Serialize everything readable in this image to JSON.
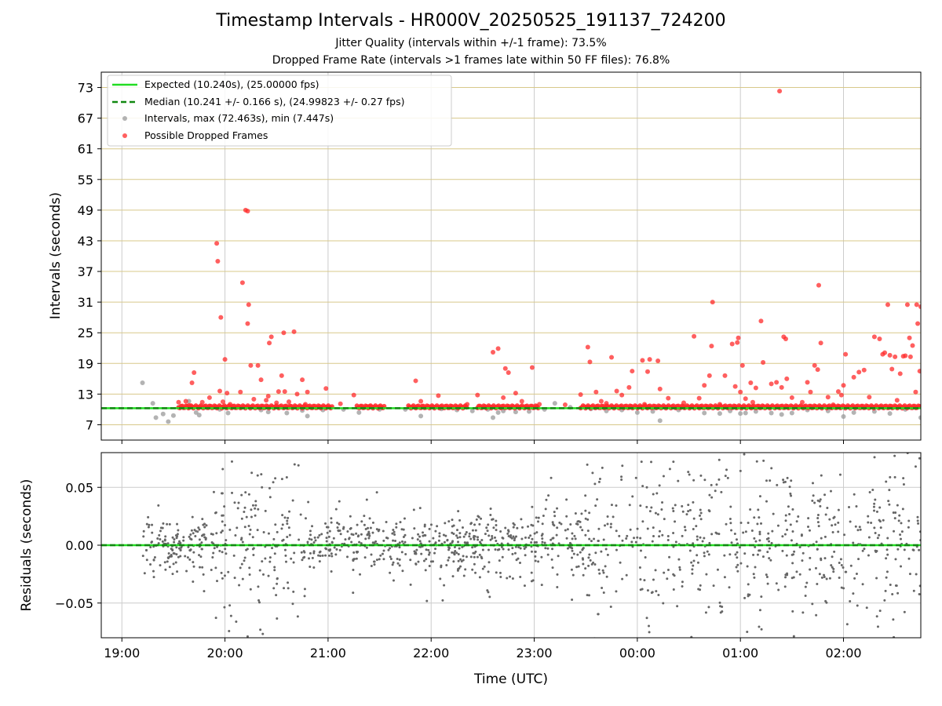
{
  "figure": {
    "title": "Timestamp Intervals - HR000V_20250525_191137_724200",
    "subtitle_lines": [
      "Jitter Quality (intervals within +/-1 frame): 73.5%",
      "Dropped Frame Rate (intervals >1 frames late within 50 FF files): 76.8%"
    ]
  },
  "colors": {
    "expected_line": "#22dd22",
    "median_line": "#118811",
    "intervals_points": "#999999",
    "dropped_points": "#ff2a2a",
    "residual_points": "#666666",
    "top_grid": "#d8c88a",
    "vertical_grid": "#cccccc"
  },
  "chart_data": [
    {
      "type": "scatter",
      "panel": "top",
      "ylabel": "Intervals (seconds)",
      "xlabel": "",
      "x_unit": "hours (UTC, continuous from 19:00)",
      "xlim": [
        18.8,
        26.75
      ],
      "ylim": [
        4.0,
        76.0
      ],
      "y_ticks": [
        7,
        13,
        19,
        25,
        31,
        37,
        43,
        49,
        55,
        61,
        67,
        73
      ],
      "x_ticks": [
        19,
        20,
        21,
        22,
        23,
        24,
        25,
        26
      ],
      "x_tick_labels": [
        "19:00",
        "20:00",
        "21:00",
        "22:00",
        "23:00",
        "00:00",
        "01:00",
        "02:00"
      ],
      "grid": {
        "horizontal": true,
        "vertical": true
      },
      "legend_position": "top-left",
      "legend": [
        "Expected (10.240s), (25.00000 fps)",
        "Median (10.241 +/- 0.166 s), (24.99823 +/- 0.27 fps)",
        "Intervals, max (72.463s), min (7.447s)",
        "Possible Dropped Frames"
      ],
      "expected_value": 10.24,
      "median_value": 10.241,
      "series": {
        "intervals": [
          [
            19.2,
            15.2
          ],
          [
            19.3,
            11.2
          ],
          [
            19.33,
            8.4
          ],
          [
            19.4,
            9.1
          ],
          [
            19.45,
            7.6
          ],
          [
            19.5,
            8.8
          ],
          [
            19.55,
            10.4
          ],
          [
            19.65,
            11.6
          ],
          [
            19.72,
            9.4
          ],
          [
            19.75,
            8.9
          ],
          [
            19.85,
            10.6
          ],
          [
            19.95,
            10.0
          ],
          [
            20.03,
            9.3
          ],
          [
            20.2,
            10.5
          ],
          [
            20.35,
            9.9
          ],
          [
            20.42,
            9.5
          ],
          [
            20.6,
            9.3
          ],
          [
            20.75,
            9.8
          ],
          [
            20.8,
            8.7
          ],
          [
            20.95,
            9.9
          ],
          [
            21.15,
            10.0
          ],
          [
            21.3,
            9.4
          ],
          [
            21.5,
            10.0
          ],
          [
            21.75,
            10.0
          ],
          [
            21.9,
            8.7
          ],
          [
            22.1,
            10.1
          ],
          [
            22.25,
            9.9
          ],
          [
            22.4,
            9.7
          ],
          [
            22.55,
            10.0
          ],
          [
            22.6,
            8.4
          ],
          [
            22.65,
            9.4
          ],
          [
            22.7,
            9.7
          ],
          [
            22.82,
            9.5
          ],
          [
            22.95,
            9.6
          ],
          [
            23.1,
            10.0
          ],
          [
            23.2,
            11.2
          ],
          [
            23.35,
            10.4
          ],
          [
            23.55,
            10.1
          ],
          [
            23.7,
            9.7
          ],
          [
            23.85,
            9.9
          ],
          [
            24.0,
            9.4
          ],
          [
            24.15,
            9.6
          ],
          [
            24.22,
            7.8
          ],
          [
            24.4,
            9.9
          ],
          [
            24.65,
            9.3
          ],
          [
            24.8,
            9.2
          ],
          [
            24.9,
            9.7
          ],
          [
            25.0,
            9.2
          ],
          [
            25.05,
            9.3
          ],
          [
            25.15,
            9.6
          ],
          [
            25.3,
            9.3
          ],
          [
            25.4,
            9.0
          ],
          [
            25.5,
            9.3
          ],
          [
            25.65,
            9.9
          ],
          [
            25.85,
            9.7
          ],
          [
            26.0,
            8.6
          ],
          [
            26.1,
            9.4
          ],
          [
            26.3,
            9.6
          ],
          [
            26.45,
            9.2
          ],
          [
            26.6,
            10.0
          ],
          [
            26.75,
            8.4
          ]
        ],
        "dropped": [
          [
            19.55,
            11.4
          ],
          [
            19.62,
            11.6
          ],
          [
            19.65,
            10.8
          ],
          [
            19.68,
            15.2
          ],
          [
            19.7,
            17.2
          ],
          [
            19.78,
            11.4
          ],
          [
            19.85,
            12.3
          ],
          [
            19.92,
            42.5
          ],
          [
            19.93,
            39.0
          ],
          [
            19.95,
            13.6
          ],
          [
            19.96,
            28.0
          ],
          [
            19.98,
            11.5
          ],
          [
            20.0,
            19.8
          ],
          [
            20.02,
            13.2
          ],
          [
            20.05,
            11.0
          ],
          [
            20.15,
            13.4
          ],
          [
            20.17,
            34.8
          ],
          [
            20.2,
            49.0
          ],
          [
            20.22,
            48.8
          ],
          [
            20.22,
            26.8
          ],
          [
            20.23,
            30.5
          ],
          [
            20.25,
            18.6
          ],
          [
            20.28,
            12.0
          ],
          [
            20.32,
            18.6
          ],
          [
            20.35,
            15.8
          ],
          [
            20.4,
            11.8
          ],
          [
            20.42,
            12.6
          ],
          [
            20.43,
            23.0
          ],
          [
            20.45,
            24.2
          ],
          [
            20.5,
            11.3
          ],
          [
            20.52,
            13.5
          ],
          [
            20.55,
            16.6
          ],
          [
            20.57,
            25.0
          ],
          [
            20.58,
            13.5
          ],
          [
            20.62,
            11.5
          ],
          [
            20.67,
            25.2
          ],
          [
            20.7,
            13.0
          ],
          [
            20.75,
            15.8
          ],
          [
            20.78,
            11.0
          ],
          [
            20.8,
            13.4
          ],
          [
            20.98,
            14.1
          ],
          [
            21.12,
            11.1
          ],
          [
            21.25,
            12.8
          ],
          [
            21.4,
            10.6
          ],
          [
            21.85,
            15.6
          ],
          [
            21.9,
            11.6
          ],
          [
            22.07,
            12.7
          ],
          [
            22.35,
            11.0
          ],
          [
            22.45,
            12.8
          ],
          [
            22.6,
            21.2
          ],
          [
            22.65,
            21.9
          ],
          [
            22.7,
            12.3
          ],
          [
            22.72,
            18.0
          ],
          [
            22.75,
            17.2
          ],
          [
            22.82,
            13.2
          ],
          [
            22.88,
            11.6
          ],
          [
            22.98,
            18.2
          ],
          [
            23.05,
            11.0
          ],
          [
            23.3,
            10.9
          ],
          [
            23.45,
            12.9
          ],
          [
            23.52,
            22.2
          ],
          [
            23.54,
            19.3
          ],
          [
            23.6,
            13.4
          ],
          [
            23.65,
            11.6
          ],
          [
            23.7,
            11.2
          ],
          [
            23.75,
            20.2
          ],
          [
            23.8,
            13.6
          ],
          [
            23.85,
            12.8
          ],
          [
            23.92,
            14.3
          ],
          [
            23.95,
            17.5
          ],
          [
            24.05,
            19.6
          ],
          [
            24.07,
            11.0
          ],
          [
            24.1,
            17.4
          ],
          [
            24.12,
            19.8
          ],
          [
            24.2,
            19.5
          ],
          [
            24.22,
            14.0
          ],
          [
            24.3,
            12.2
          ],
          [
            24.45,
            11.3
          ],
          [
            24.55,
            24.3
          ],
          [
            24.6,
            12.2
          ],
          [
            24.65,
            14.7
          ],
          [
            24.7,
            16.6
          ],
          [
            24.72,
            22.4
          ],
          [
            24.73,
            31.0
          ],
          [
            24.8,
            11.0
          ],
          [
            24.85,
            16.6
          ],
          [
            24.92,
            22.8
          ],
          [
            24.95,
            14.5
          ],
          [
            24.97,
            23.1
          ],
          [
            24.98,
            24.0
          ],
          [
            25.0,
            13.4
          ],
          [
            25.02,
            18.6
          ],
          [
            25.05,
            12.1
          ],
          [
            25.1,
            15.2
          ],
          [
            25.12,
            11.4
          ],
          [
            25.15,
            14.2
          ],
          [
            25.2,
            27.3
          ],
          [
            25.22,
            19.2
          ],
          [
            25.3,
            15.0
          ],
          [
            25.35,
            15.3
          ],
          [
            25.38,
            72.3
          ],
          [
            25.4,
            14.3
          ],
          [
            25.42,
            24.2
          ],
          [
            25.44,
            23.8
          ],
          [
            25.45,
            16.0
          ],
          [
            25.5,
            12.3
          ],
          [
            25.6,
            11.4
          ],
          [
            25.65,
            15.3
          ],
          [
            25.68,
            13.4
          ],
          [
            25.72,
            18.6
          ],
          [
            25.75,
            17.8
          ],
          [
            25.76,
            34.3
          ],
          [
            25.78,
            23.0
          ],
          [
            25.85,
            12.4
          ],
          [
            25.9,
            10.9
          ],
          [
            25.95,
            13.5
          ],
          [
            25.98,
            12.8
          ],
          [
            26.0,
            14.7
          ],
          [
            26.02,
            20.8
          ],
          [
            26.1,
            16.3
          ],
          [
            26.15,
            17.3
          ],
          [
            26.2,
            17.7
          ],
          [
            26.25,
            12.4
          ],
          [
            26.3,
            24.2
          ],
          [
            26.35,
            23.8
          ],
          [
            26.38,
            20.8
          ],
          [
            26.4,
            21.1
          ],
          [
            26.43,
            30.5
          ],
          [
            26.45,
            20.6
          ],
          [
            26.47,
            17.9
          ],
          [
            26.5,
            20.3
          ],
          [
            26.52,
            11.8
          ],
          [
            26.55,
            17.0
          ],
          [
            26.58,
            20.4
          ],
          [
            26.6,
            20.5
          ],
          [
            26.62,
            30.5
          ],
          [
            26.64,
            24.0
          ],
          [
            26.65,
            20.3
          ],
          [
            26.67,
            22.5
          ],
          [
            26.7,
            13.4
          ],
          [
            26.71,
            30.5
          ],
          [
            26.72,
            26.8
          ],
          [
            26.74,
            17.5
          ],
          [
            26.75,
            30.1
          ]
        ]
      }
    },
    {
      "type": "scatter",
      "panel": "bottom",
      "ylabel": "Residuals (seconds)",
      "xlabel": "Time (UTC)",
      "x_unit": "hours (UTC, continuous from 19:00)",
      "xlim": [
        18.8,
        26.75
      ],
      "ylim": [
        -0.08,
        0.08
      ],
      "y_ticks": [
        -0.05,
        0.0,
        0.05
      ],
      "y_tick_labels": [
        "−0.05",
        "0.00",
        "0.05"
      ],
      "x_ticks": [
        19,
        20,
        21,
        22,
        23,
        24,
        25,
        26
      ],
      "x_tick_labels": [
        "19:00",
        "20:00",
        "21:00",
        "22:00",
        "23:00",
        "00:00",
        "01:00",
        "02:00"
      ],
      "grid": {
        "horizontal": true,
        "vertical": true
      },
      "reference_value": 0.0,
      "series": {
        "residuals_envelope": [
          {
            "x0": 19.2,
            "x1": 19.9,
            "spread": 0.012,
            "outlier_spread": 0.05,
            "count": 150
          },
          {
            "x0": 19.9,
            "x1": 20.8,
            "spread": 0.03,
            "outlier_spread": 0.08,
            "count": 170
          },
          {
            "x0": 20.8,
            "x1": 22.5,
            "spread": 0.012,
            "outlier_spread": 0.05,
            "count": 360
          },
          {
            "x0": 22.5,
            "x1": 23.5,
            "spread": 0.018,
            "outlier_spread": 0.07,
            "count": 200
          },
          {
            "x0": 23.5,
            "x1": 26.75,
            "spread": 0.035,
            "outlier_spread": 0.08,
            "count": 560
          }
        ]
      }
    }
  ]
}
